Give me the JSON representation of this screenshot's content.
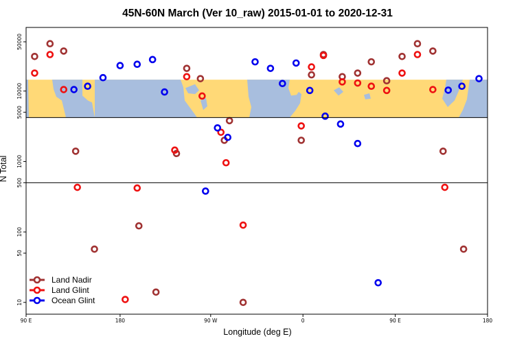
{
  "chart_data": {
    "type": "scatter",
    "title": "45N-60N March (Ver 10_raw)   2015-01-01 to 2020-12-31",
    "xlabel": "Longitude (deg E)",
    "ylabel": "N Total",
    "y_scale": "log",
    "xlim": [
      -90,
      180
    ],
    "ylim": [
      6.8,
      80000
    ],
    "x_ticks": [
      {
        "value": -90,
        "label": "90 E"
      },
      {
        "value": -35,
        "label": "180"
      },
      {
        "value": 18,
        "label": "90 W"
      },
      {
        "value": 72,
        "label": "0"
      },
      {
        "value": 126,
        "label": "90 E"
      },
      {
        "value": 180,
        "label": "180"
      }
    ],
    "y_ticks": [
      {
        "value": 10,
        "label": "10"
      },
      {
        "value": 50,
        "label": "50"
      },
      {
        "value": 100,
        "label": "100"
      },
      {
        "value": 500,
        "label": "500"
      },
      {
        "value": 1000,
        "label": "1000"
      },
      {
        "value": 5000,
        "label": "5000"
      },
      {
        "value": 10000,
        "label": "10000"
      },
      {
        "value": 50000,
        "label": "50000"
      }
    ],
    "map_band": {
      "lat_range": "45N-60N",
      "y_range": [
        4200,
        14500
      ],
      "land_color": "#FFD977",
      "ocean_color": "#A8BEDE"
    },
    "legend": {
      "position": "bottom-left"
    },
    "series": [
      {
        "name": "Land Nadir",
        "color": "#A03232",
        "points": [
          {
            "x": -85,
            "y": 31000
          },
          {
            "x": -76,
            "y": 47000
          },
          {
            "x": -68,
            "y": 37000
          },
          {
            "x": -61,
            "y": 1400
          },
          {
            "x": -50,
            "y": 57
          },
          {
            "x": -24,
            "y": 122
          },
          {
            "x": -14,
            "y": 14
          },
          {
            "x": -2,
            "y": 1300
          },
          {
            "x": 4,
            "y": 21000
          },
          {
            "x": 12,
            "y": 15000
          },
          {
            "x": 26,
            "y": 2000
          },
          {
            "x": 29,
            "y": 3800
          },
          {
            "x": 37,
            "y": 10
          },
          {
            "x": 71,
            "y": 2000
          },
          {
            "x": 77,
            "y": 17000
          },
          {
            "x": 84,
            "y": 33000
          },
          {
            "x": 95,
            "y": 16000
          },
          {
            "x": 104,
            "y": 18000
          },
          {
            "x": 112,
            "y": 26000
          },
          {
            "x": 121,
            "y": 14000
          },
          {
            "x": 130,
            "y": 31000
          },
          {
            "x": 139,
            "y": 47000
          },
          {
            "x": 148,
            "y": 37000
          },
          {
            "x": 154,
            "y": 1400
          },
          {
            "x": 166,
            "y": 57
          }
        ]
      },
      {
        "name": "Land Glint",
        "color": "#EE1111",
        "points": [
          {
            "x": -85,
            "y": 18000
          },
          {
            "x": -76,
            "y": 33000
          },
          {
            "x": -68,
            "y": 10500
          },
          {
            "x": -60,
            "y": 430
          },
          {
            "x": -32,
            "y": 11
          },
          {
            "x": -25,
            "y": 420
          },
          {
            "x": -3,
            "y": 1450
          },
          {
            "x": 4,
            "y": 16000
          },
          {
            "x": 13,
            "y": 8500
          },
          {
            "x": 24,
            "y": 2600
          },
          {
            "x": 27,
            "y": 960
          },
          {
            "x": 37,
            "y": 125
          },
          {
            "x": 71,
            "y": 3200
          },
          {
            "x": 77,
            "y": 22000
          },
          {
            "x": 84,
            "y": 32000
          },
          {
            "x": 95,
            "y": 13500
          },
          {
            "x": 104,
            "y": 13000
          },
          {
            "x": 112,
            "y": 11700
          },
          {
            "x": 121,
            "y": 10200
          },
          {
            "x": 130,
            "y": 18000
          },
          {
            "x": 139,
            "y": 33000
          },
          {
            "x": 148,
            "y": 10500
          },
          {
            "x": 155,
            "y": 430
          }
        ]
      },
      {
        "name": "Ocean Glint",
        "color": "#0000EE",
        "points": [
          {
            "x": -62,
            "y": 10500
          },
          {
            "x": -54,
            "y": 11700
          },
          {
            "x": -45,
            "y": 15500
          },
          {
            "x": -35,
            "y": 23000
          },
          {
            "x": -25,
            "y": 24000
          },
          {
            "x": -16,
            "y": 28000
          },
          {
            "x": -9,
            "y": 9700
          },
          {
            "x": 15,
            "y": 380
          },
          {
            "x": 22,
            "y": 3000
          },
          {
            "x": 28,
            "y": 2200
          },
          {
            "x": 44,
            "y": 26000
          },
          {
            "x": 53,
            "y": 21000
          },
          {
            "x": 60,
            "y": 12800
          },
          {
            "x": 68,
            "y": 25000
          },
          {
            "x": 76,
            "y": 10200
          },
          {
            "x": 85,
            "y": 4400
          },
          {
            "x": 94,
            "y": 3400
          },
          {
            "x": 104,
            "y": 1800
          },
          {
            "x": 116,
            "y": 19
          },
          {
            "x": 157,
            "y": 10300
          },
          {
            "x": 165,
            "y": 11700
          },
          {
            "x": 175,
            "y": 15000
          }
        ]
      }
    ]
  }
}
